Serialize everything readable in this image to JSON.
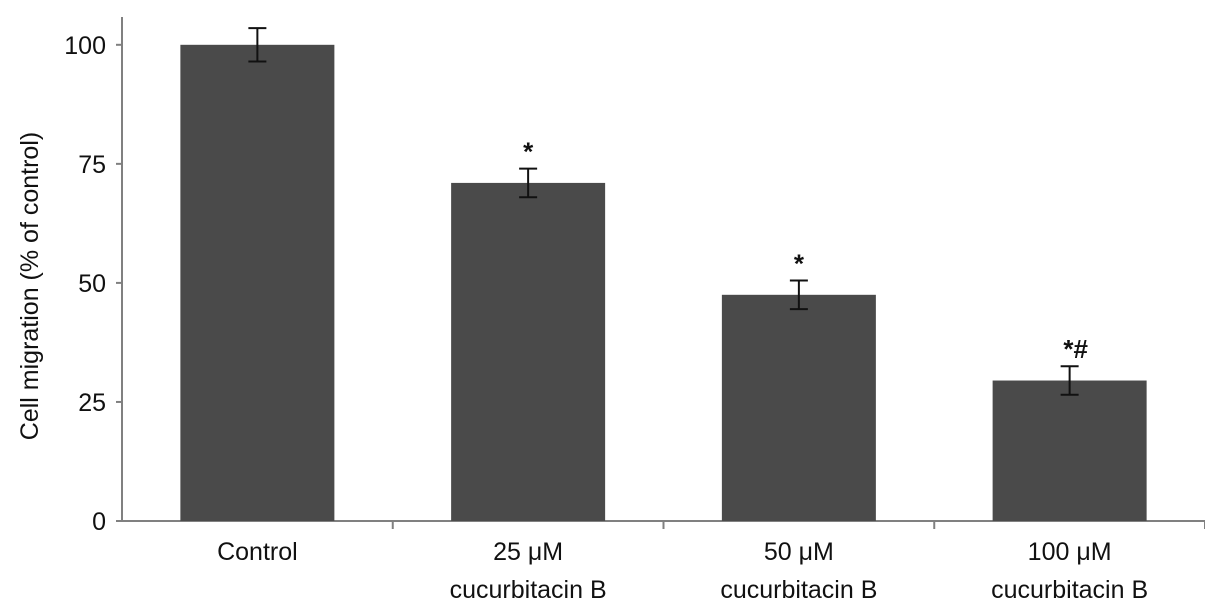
{
  "chart_data": {
    "type": "bar",
    "categories": [
      [
        "Control"
      ],
      [
        "25 μM",
        "cucurbitacin B"
      ],
      [
        "50 μM",
        "cucurbitacin B"
      ],
      [
        "100 μM",
        "cucurbitacin B"
      ]
    ],
    "values": [
      100,
      71,
      47.5,
      29.5
    ],
    "errors": [
      3.5,
      3,
      3,
      3
    ],
    "annotations": [
      "",
      "*",
      "*",
      "*#"
    ],
    "title": "",
    "xlabel": "",
    "ylabel": "Cell migration (% of control)",
    "ylim": [
      0,
      105
    ],
    "yticks": [
      0,
      25,
      50,
      75,
      100
    ],
    "grid": false,
    "bar_color": "#4a4a4a",
    "axis_color": "#808080"
  }
}
